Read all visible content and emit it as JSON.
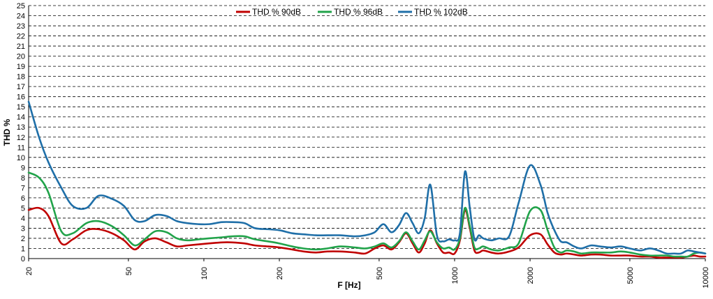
{
  "chart_data": {
    "type": "line",
    "title": "",
    "xlabel": "F [Hz]",
    "ylabel": "THD %",
    "xscale": "log",
    "xlim": [
      20,
      10000
    ],
    "ylim": [
      0,
      25
    ],
    "grid": true,
    "legend_position": "top-center",
    "x_ticks": [
      "20",
      "50",
      "100",
      "200",
      "500",
      "1000",
      "2000",
      "5000",
      "10000"
    ],
    "y_ticks": [
      "0",
      "1",
      "2",
      "3",
      "4",
      "5",
      "6",
      "7",
      "8",
      "9",
      "10",
      "11",
      "12",
      "13",
      "14",
      "15",
      "16",
      "17",
      "18",
      "19",
      "20",
      "21",
      "22",
      "23",
      "24",
      "25"
    ],
    "series": [
      {
        "name": "THD % 90dB",
        "color": "#c00000",
        "x": [
          20,
          22,
          24,
          27,
          30,
          34,
          38,
          43,
          48,
          53,
          58,
          64,
          71,
          78,
          86,
          95,
          105,
          118,
          130,
          145,
          160,
          180,
          200,
          225,
          250,
          280,
          310,
          350,
          400,
          440,
          480,
          520,
          560,
          600,
          640,
          680,
          720,
          760,
          800,
          850,
          900,
          950,
          1000,
          1050,
          1100,
          1150,
          1200,
          1250,
          1300,
          1400,
          1500,
          1650,
          1800,
          2000,
          2200,
          2350,
          2500,
          2650,
          2800,
          3000,
          3200,
          3500,
          3800,
          4200,
          4600,
          5000,
          5500,
          6000,
          6500,
          7000,
          7500,
          8000,
          8500,
          9000,
          9500,
          10000
        ],
        "values": [
          4.8,
          5.0,
          4.2,
          1.5,
          1.9,
          2.8,
          2.9,
          2.5,
          1.8,
          0.9,
          1.7,
          2.0,
          1.6,
          1.2,
          1.3,
          1.4,
          1.5,
          1.6,
          1.6,
          1.5,
          1.3,
          1.2,
          1.1,
          0.9,
          0.7,
          0.6,
          0.7,
          0.7,
          0.6,
          0.5,
          1.0,
          1.3,
          0.9,
          1.6,
          2.5,
          1.5,
          0.6,
          1.5,
          2.8,
          1.5,
          0.6,
          0.6,
          0.5,
          1.8,
          4.8,
          3.0,
          0.8,
          0.6,
          0.8,
          0.6,
          0.5,
          0.7,
          1.1,
          2.3,
          2.4,
          1.4,
          0.6,
          0.4,
          0.5,
          0.4,
          0.3,
          0.4,
          0.4,
          0.3,
          0.3,
          0.3,
          0.2,
          0.2,
          0.1,
          0.1,
          0.1,
          0.1,
          0.2,
          0.3,
          0.2,
          0.2
        ]
      },
      {
        "name": "THD % 96dB",
        "color": "#21a34a",
        "x": [
          20,
          22,
          24,
          27,
          30,
          34,
          38,
          43,
          48,
          53,
          58,
          64,
          71,
          78,
          86,
          95,
          105,
          118,
          130,
          145,
          160,
          180,
          200,
          225,
          250,
          280,
          310,
          350,
          400,
          440,
          480,
          520,
          560,
          600,
          640,
          680,
          720,
          760,
          800,
          850,
          900,
          950,
          1000,
          1050,
          1100,
          1150,
          1200,
          1250,
          1300,
          1400,
          1500,
          1650,
          1800,
          2000,
          2200,
          2350,
          2500,
          2650,
          2800,
          3000,
          3200,
          3500,
          3800,
          4200,
          4600,
          5000,
          5500,
          6000,
          6500,
          7000,
          7500,
          8000,
          8500,
          9000,
          9500,
          10000
        ],
        "values": [
          8.5,
          8.0,
          6.5,
          2.7,
          2.5,
          3.5,
          3.7,
          3.2,
          2.3,
          1.3,
          1.9,
          2.7,
          2.6,
          2.0,
          1.8,
          1.9,
          2.0,
          2.1,
          2.2,
          2.2,
          1.9,
          1.7,
          1.5,
          1.2,
          1.0,
          0.9,
          1.0,
          1.2,
          1.1,
          1.0,
          1.2,
          1.5,
          1.1,
          1.7,
          2.6,
          1.7,
          0.9,
          1.8,
          2.7,
          1.6,
          1.0,
          1.1,
          0.9,
          2.0,
          5.0,
          3.2,
          1.1,
          1.0,
          1.2,
          0.9,
          0.8,
          1.1,
          1.5,
          4.7,
          4.8,
          2.8,
          1.1,
          0.6,
          0.8,
          0.7,
          0.5,
          0.6,
          0.6,
          0.6,
          0.7,
          0.6,
          0.4,
          0.3,
          0.3,
          0.3,
          0.2,
          0.2,
          0.2,
          0.5,
          0.6,
          0.5
        ]
      },
      {
        "name": "THD % 102dB",
        "color": "#1f6fa8",
        "x": [
          20,
          22,
          24,
          27,
          30,
          34,
          38,
          43,
          48,
          53,
          58,
          64,
          71,
          78,
          86,
          95,
          105,
          118,
          130,
          145,
          160,
          180,
          200,
          225,
          250,
          280,
          310,
          350,
          400,
          440,
          480,
          520,
          560,
          600,
          640,
          680,
          720,
          760,
          800,
          850,
          900,
          950,
          1000,
          1050,
          1100,
          1150,
          1200,
          1250,
          1300,
          1400,
          1500,
          1650,
          1800,
          2000,
          2200,
          2350,
          2500,
          2650,
          2800,
          3000,
          3200,
          3500,
          3800,
          4200,
          4600,
          5000,
          5500,
          6000,
          6500,
          7000,
          7500,
          8000,
          8500,
          9000,
          9500,
          10000
        ],
        "values": [
          15.5,
          12.0,
          9.5,
          7.0,
          5.2,
          5.0,
          6.2,
          5.9,
          5.2,
          3.8,
          3.7,
          4.3,
          4.2,
          3.7,
          3.5,
          3.4,
          3.4,
          3.6,
          3.6,
          3.5,
          3.0,
          2.9,
          2.8,
          2.5,
          2.4,
          2.3,
          2.3,
          2.3,
          2.2,
          2.3,
          2.6,
          3.4,
          2.6,
          3.3,
          4.5,
          3.5,
          2.5,
          4.0,
          7.3,
          2.3,
          1.7,
          1.9,
          1.8,
          2.5,
          8.6,
          5.0,
          1.9,
          2.3,
          2.0,
          1.8,
          2.0,
          2.2,
          5.5,
          9.2,
          7.3,
          4.5,
          2.8,
          1.7,
          1.6,
          1.2,
          1.0,
          1.3,
          1.2,
          1.1,
          1.2,
          1.0,
          0.8,
          1.0,
          0.8,
          0.5,
          0.5,
          0.5,
          0.8,
          0.7,
          0.6,
          0.5
        ]
      }
    ]
  }
}
